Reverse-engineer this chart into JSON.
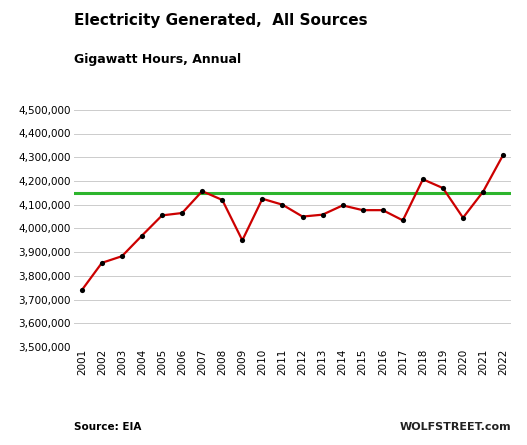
{
  "title": "Electricity Generated,  All Sources",
  "subtitle": "Gigawatt Hours, Annual",
  "years": [
    2001,
    2002,
    2003,
    2004,
    2005,
    2006,
    2007,
    2008,
    2009,
    2010,
    2011,
    2012,
    2013,
    2014,
    2015,
    2016,
    2017,
    2018,
    2019,
    2020,
    2021,
    2022
  ],
  "values": [
    3740000,
    3855000,
    3883000,
    3970000,
    4055000,
    4065000,
    4157000,
    4120000,
    3950000,
    4125000,
    4100000,
    4050000,
    4058000,
    4097000,
    4077000,
    4077000,
    4034000,
    4207000,
    4170000,
    4045000,
    4155000,
    4310000
  ],
  "reference_line": 4150000,
  "line_color": "#cc0000",
  "reference_color": "#2db52d",
  "marker_color": "#000000",
  "ylim_min": 3500000,
  "ylim_max": 4550000,
  "yticks": [
    3500000,
    3600000,
    3700000,
    3800000,
    3900000,
    4000000,
    4100000,
    4200000,
    4300000,
    4400000,
    4500000
  ],
  "source_text": "Source: EIA",
  "watermark": "WOLFSTREET.com",
  "background_color": "#ffffff",
  "grid_color": "#cccccc",
  "title_fontsize": 11,
  "subtitle_fontsize": 9,
  "tick_fontsize": 7.5,
  "source_fontsize": 7.5,
  "watermark_fontsize": 8
}
